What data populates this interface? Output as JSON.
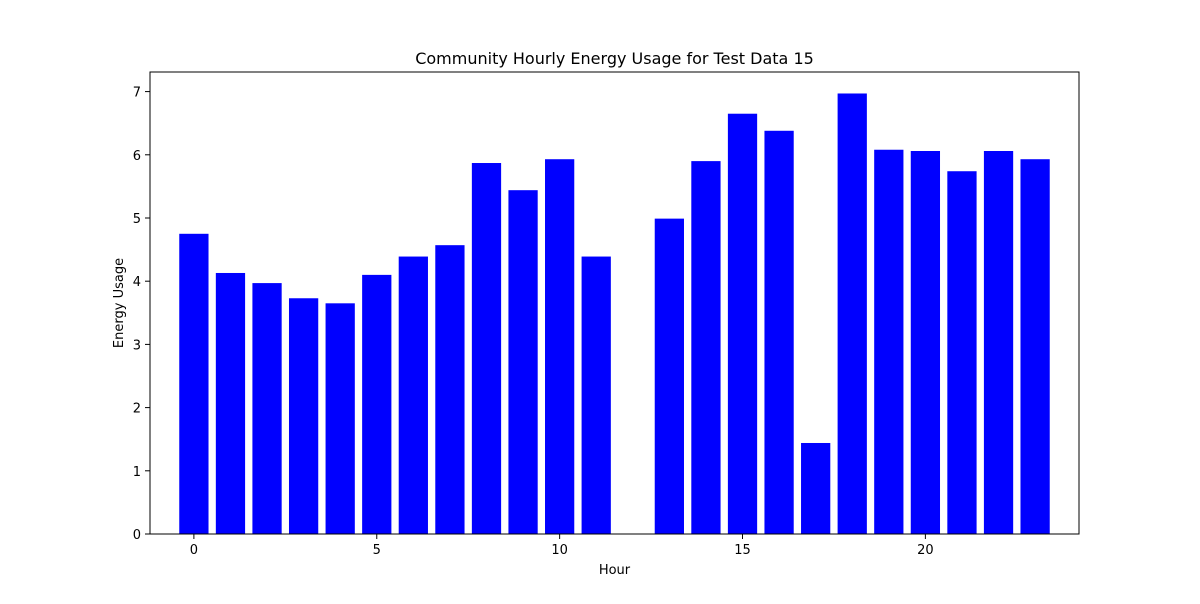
{
  "chart_data": {
    "type": "bar",
    "title": "Community Hourly Energy Usage for Test Data 15",
    "xlabel": "Hour",
    "ylabel": "Energy Usage",
    "x": [
      0,
      1,
      2,
      3,
      4,
      5,
      6,
      7,
      8,
      9,
      10,
      11,
      13,
      14,
      15,
      16,
      17,
      18,
      19,
      20,
      21,
      22,
      23
    ],
    "values": [
      4.75,
      4.13,
      3.97,
      3.73,
      3.65,
      4.1,
      4.39,
      4.57,
      5.87,
      5.44,
      5.93,
      4.39,
      4.99,
      5.9,
      6.65,
      6.38,
      1.44,
      6.97,
      6.08,
      6.06,
      5.74,
      6.06,
      5.93
    ],
    "xlim": [
      -1.2,
      24.2
    ],
    "ylim": [
      0,
      7.31
    ],
    "xticks": [
      0,
      5,
      10,
      15,
      20
    ],
    "yticks": [
      0,
      1,
      2,
      3,
      4,
      5,
      6,
      7
    ],
    "bar_color": "#0000ff",
    "grid": false
  }
}
